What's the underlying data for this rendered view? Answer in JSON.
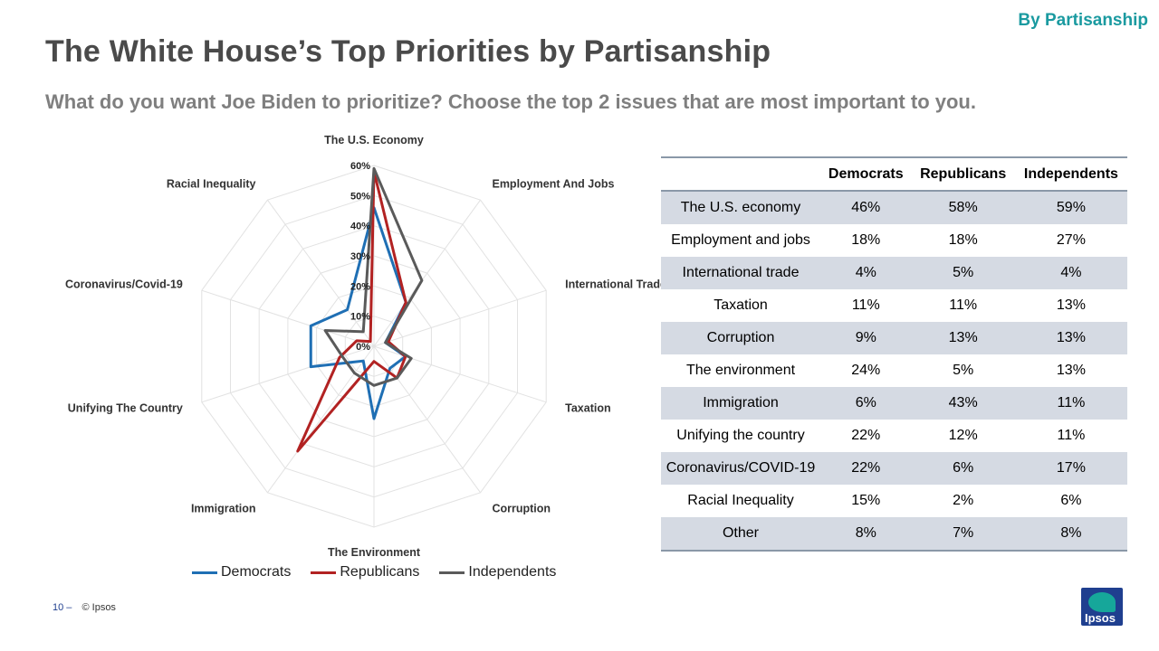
{
  "header": {
    "tag": "By Partisanship",
    "title": "The White House’s Top Priorities by Partisanship",
    "subtitle": "What do you want Joe Biden to prioritize? Choose the top 2 issues that are most important to you."
  },
  "chart_data": {
    "type": "radar",
    "categories": [
      "The U.S. Economy",
      "Employment And Jobs",
      "International Trade",
      "Taxation",
      "Corruption",
      "The Environment",
      "Immigration",
      "Unifying The Country",
      "Coronavirus/Covid-19",
      "Racial Inequality"
    ],
    "ticks": [
      "0%",
      "10%",
      "20%",
      "30%",
      "40%",
      "50%",
      "60%"
    ],
    "rmax": 60,
    "grid": true,
    "legend_position": "bottom",
    "series": [
      {
        "name": "Democrats",
        "color": "#1f6fb4",
        "values": [
          46,
          18,
          4,
          11,
          9,
          24,
          6,
          22,
          22,
          15
        ]
      },
      {
        "name": "Republicans",
        "color": "#b22222",
        "values": [
          58,
          18,
          5,
          11,
          13,
          5,
          43,
          12,
          6,
          2
        ]
      },
      {
        "name": "Independents",
        "color": "#5a5a5a",
        "values": [
          59,
          27,
          4,
          13,
          13,
          13,
          11,
          11,
          17,
          6
        ]
      }
    ]
  },
  "table": {
    "headers": [
      "",
      "Democrats",
      "Republicans",
      "Independents"
    ],
    "rows": [
      [
        "The U.S. economy",
        "46%",
        "58%",
        "59%"
      ],
      [
        "Employment and jobs",
        "18%",
        "18%",
        "27%"
      ],
      [
        "International  trade",
        "4%",
        "5%",
        "4%"
      ],
      [
        "Taxation",
        "11%",
        "11%",
        "13%"
      ],
      [
        "Corruption",
        "9%",
        "13%",
        "13%"
      ],
      [
        "The environment",
        "24%",
        "5%",
        "13%"
      ],
      [
        "Immigration",
        "6%",
        "43%",
        "11%"
      ],
      [
        "Unifying the country",
        "22%",
        "12%",
        "11%"
      ],
      [
        "Coronavirus/COVID-19",
        "22%",
        "6%",
        "17%"
      ],
      [
        "Racial Inequality",
        "15%",
        "2%",
        "6%"
      ],
      [
        "Other",
        "8%",
        "7%",
        "8%"
      ]
    ]
  },
  "footer": {
    "page": "10 –",
    "copyright": "© Ipsos"
  },
  "logo": {
    "text": "Ipsos",
    "colors": {
      "background": "#1f3f8f",
      "leaf": "#16a79a"
    }
  }
}
